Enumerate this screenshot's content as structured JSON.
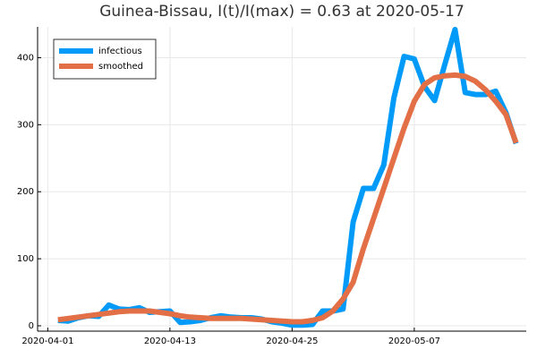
{
  "chart_data": {
    "type": "line",
    "title": "Guinea-Bissau,  I(t)/I(max) = 0.63 at 2020-05-17",
    "x": [
      "2020-04-02",
      "2020-04-03",
      "2020-04-04",
      "2020-04-05",
      "2020-04-06",
      "2020-04-07",
      "2020-04-08",
      "2020-04-09",
      "2020-04-10",
      "2020-04-11",
      "2020-04-12",
      "2020-04-13",
      "2020-04-14",
      "2020-04-15",
      "2020-04-16",
      "2020-04-17",
      "2020-04-18",
      "2020-04-19",
      "2020-04-20",
      "2020-04-21",
      "2020-04-22",
      "2020-04-23",
      "2020-04-24",
      "2020-04-25",
      "2020-04-26",
      "2020-04-27",
      "2020-04-28",
      "2020-04-29",
      "2020-04-30",
      "2020-05-01",
      "2020-05-02",
      "2020-05-03",
      "2020-05-04",
      "2020-05-05",
      "2020-05-06",
      "2020-05-07",
      "2020-05-08",
      "2020-05-09",
      "2020-05-10",
      "2020-05-11",
      "2020-05-12",
      "2020-05-13",
      "2020-05-14",
      "2020-05-15",
      "2020-05-16",
      "2020-05-17"
    ],
    "series": [
      {
        "name": "infectious",
        "color": "#009af9",
        "values": [
          8,
          7,
          12,
          15,
          14,
          31,
          25,
          24,
          27,
          20,
          21,
          22,
          5,
          6,
          8,
          12,
          15,
          13,
          12,
          12,
          10,
          6,
          4,
          1,
          1,
          2,
          22,
          22,
          25,
          155,
          205,
          205,
          240,
          340,
          402,
          398,
          357,
          336,
          390,
          442,
          348,
          345,
          345,
          350,
          318,
          272
        ]
      },
      {
        "name": "smoothed",
        "color": "#e26f46",
        "values": [
          9,
          11,
          13,
          15,
          17,
          19,
          21,
          22,
          22,
          22,
          20,
          18,
          15,
          13,
          12,
          11,
          11,
          11,
          11,
          10,
          9,
          8,
          7,
          6,
          6,
          8,
          12,
          22,
          40,
          65,
          115,
          160,
          205,
          250,
          295,
          335,
          360,
          370,
          373,
          374,
          372,
          365,
          352,
          335,
          315,
          273
        ]
      }
    ],
    "xlim": [
      "2020-03-31",
      "2020-05-18"
    ],
    "xticks": [
      "2020-04-01",
      "2020-04-13",
      "2020-04-25",
      "2020-05-07"
    ],
    "ylim": [
      -8,
      446
    ],
    "yticks": [
      0,
      100,
      200,
      300,
      400
    ],
    "grid": true,
    "legend": "top-left"
  }
}
